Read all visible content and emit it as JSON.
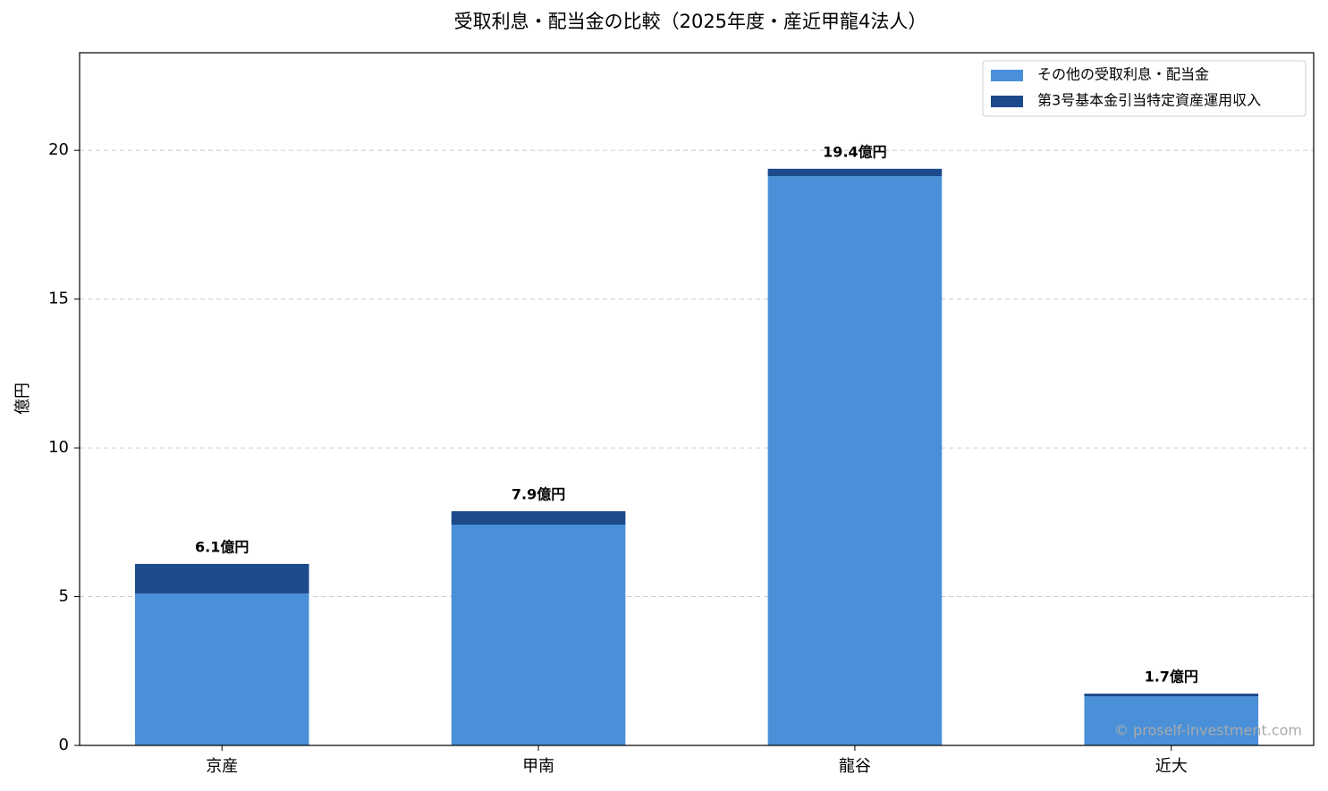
{
  "chart_data": {
    "type": "stacked_bar",
    "title": "受取利息・配当金の比較（2025年度・産近甲龍4法人）",
    "y_label": "億円",
    "categories": [
      "京産",
      "甲南",
      "龍谷",
      "近大"
    ],
    "series": [
      {
        "name": "その他の受取利息・配当金",
        "color": "#4a90d9",
        "values": [
          5.1,
          7.42,
          19.13,
          1.65
        ]
      },
      {
        "name": "第3号基本金引当特定資産運用収入",
        "color": "#1c4a8a",
        "values": [
          1.0,
          0.45,
          0.25,
          0.09
        ]
      }
    ],
    "total_labels": [
      "6.1億円",
      "7.9億円",
      "19.4億円",
      "1.7億円"
    ],
    "ylim": [
      0,
      23.28
    ],
    "yticks": [
      0,
      5,
      10,
      15,
      20
    ],
    "grid": true,
    "legend": "upper right",
    "watermark": "© proself-investment.com"
  }
}
